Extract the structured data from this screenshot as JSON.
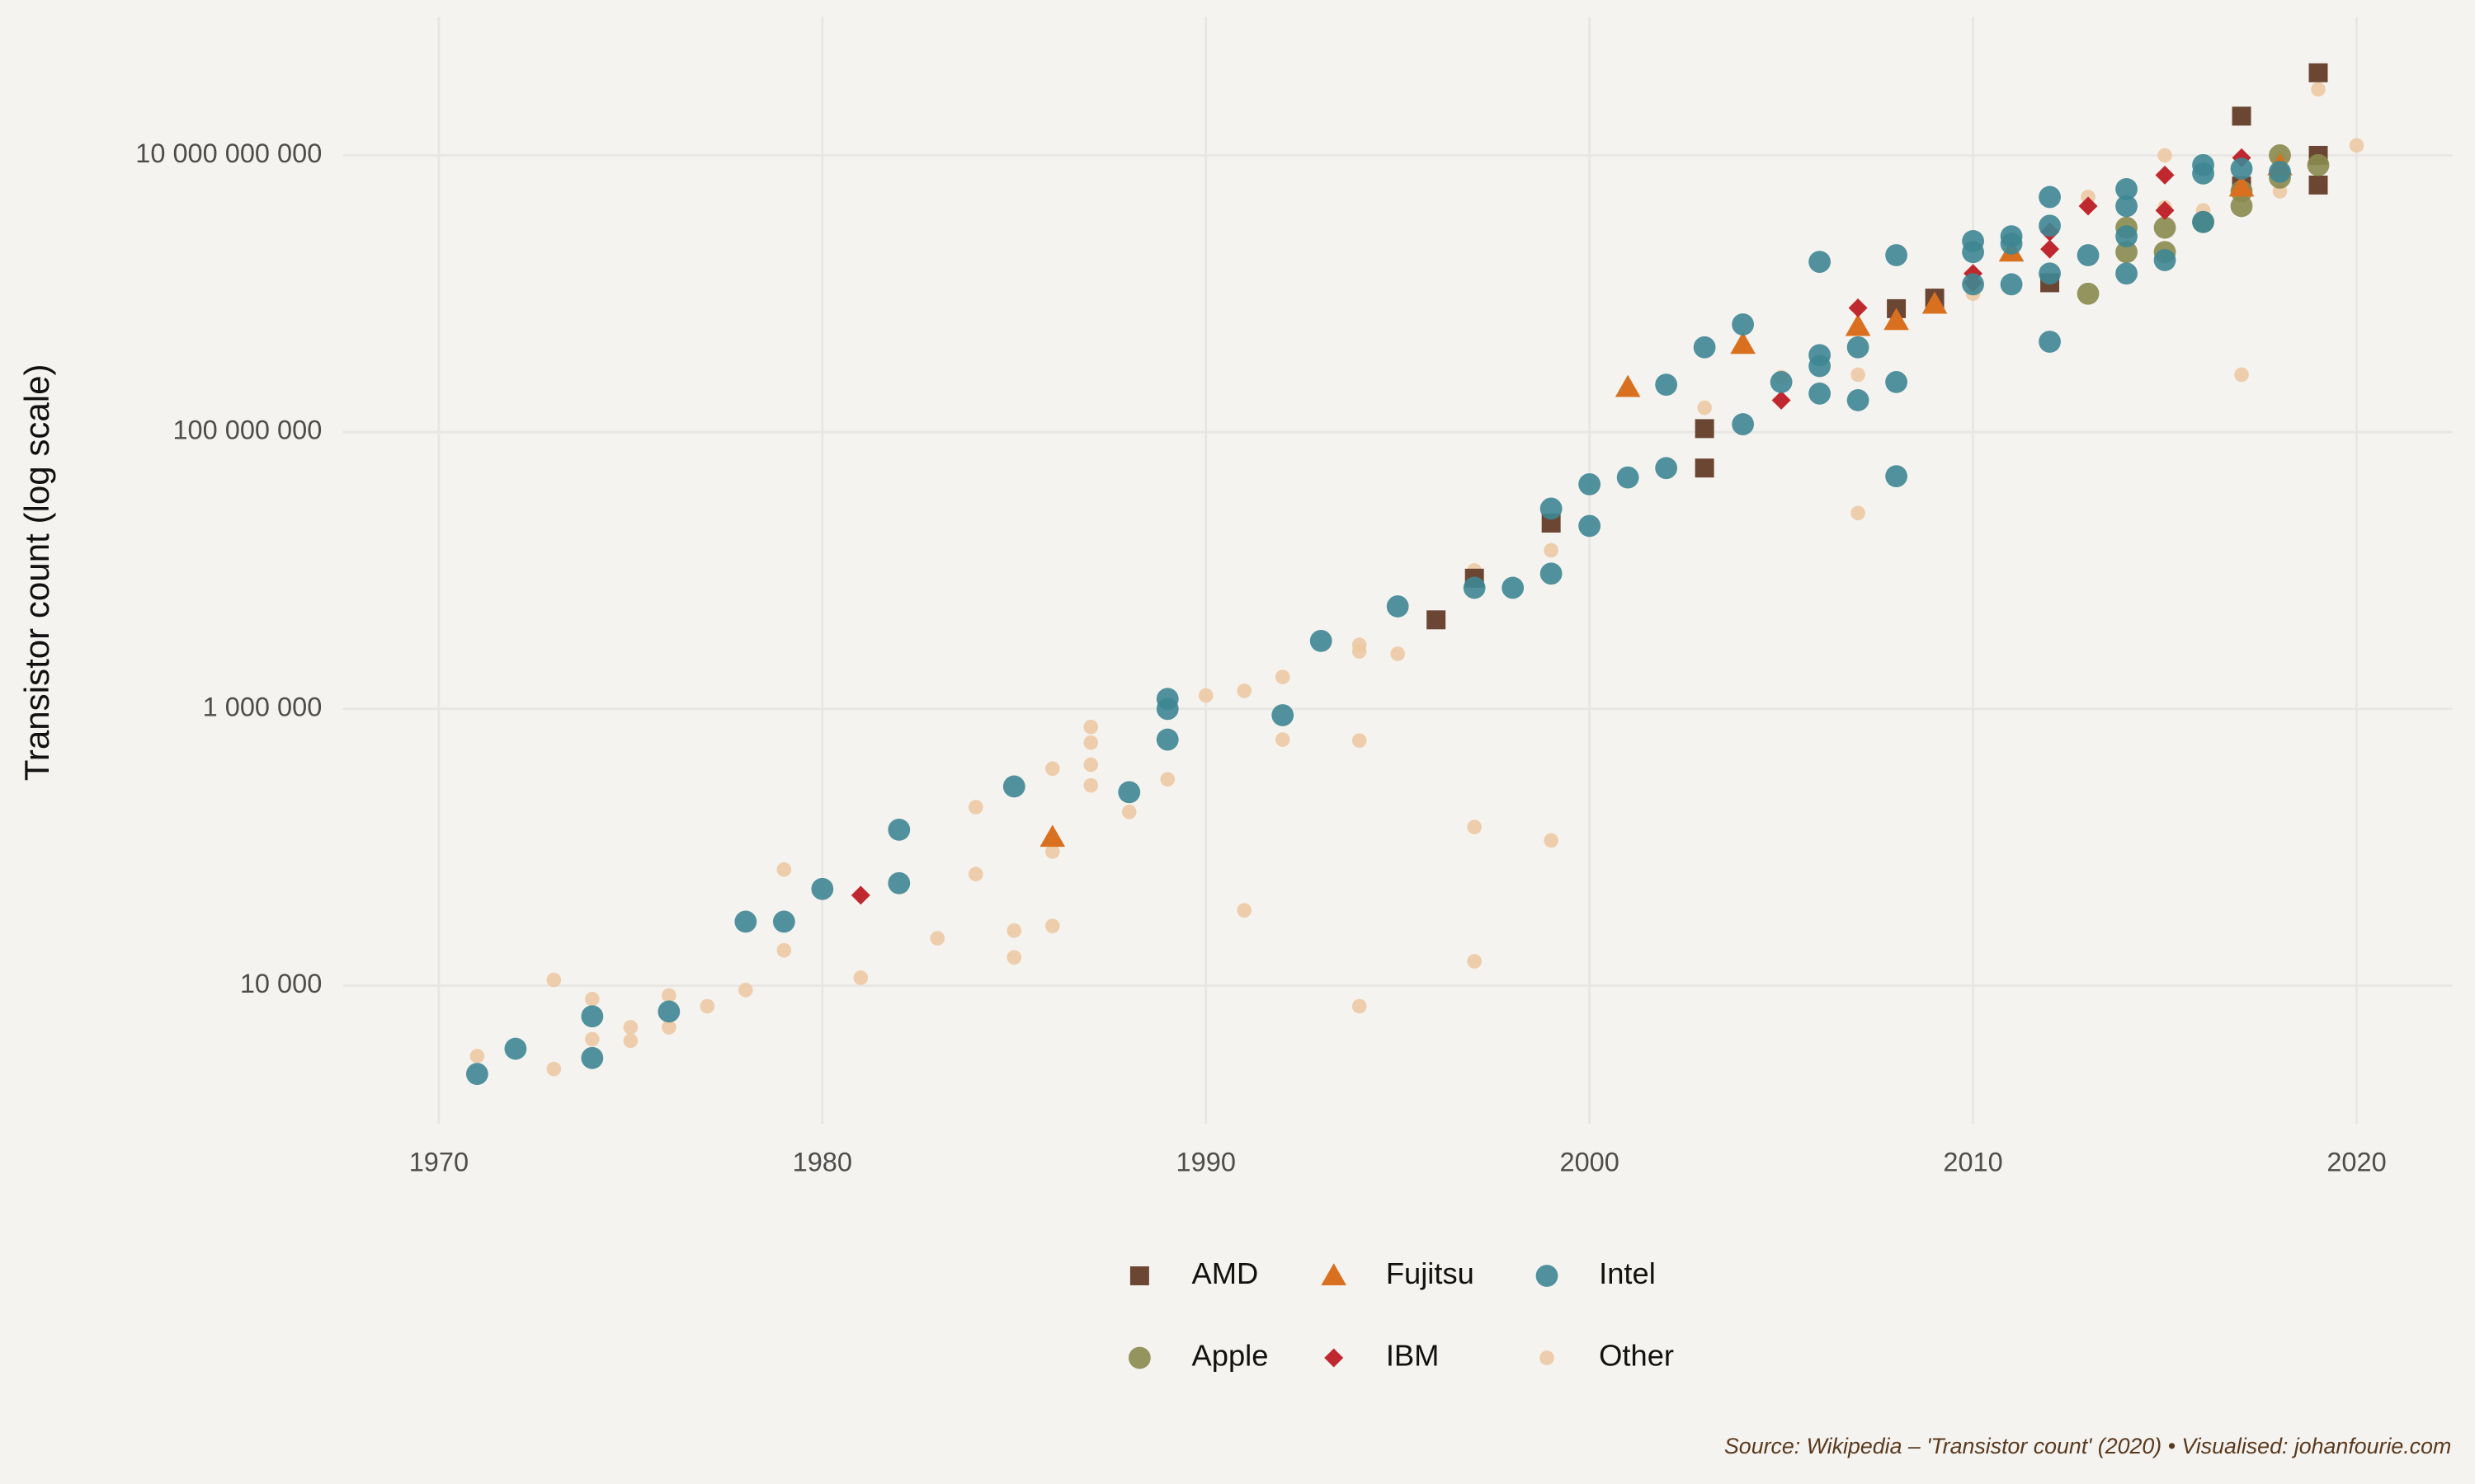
{
  "chart_data": {
    "type": "scatter",
    "y_label": "Transistor count (log scale)",
    "caption": "Source: Wikipedia – 'Transistor count' (2020) • Visualised: johanfourie.com",
    "log_y": true,
    "grid": true,
    "legend_position": "bottom",
    "xlim": [
      1967.5,
      2022.5
    ],
    "xticks": [
      1970,
      1980,
      1990,
      2000,
      2010,
      2020
    ],
    "ylim": [
      1000,
      100000000000
    ],
    "yticks": [
      {
        "value": 10000,
        "label": "10 000"
      },
      {
        "value": 1000000,
        "label": "1 000 000"
      },
      {
        "value": 100000000,
        "label": "100 000 000"
      },
      {
        "value": 10000000000,
        "label": "10 000 000 000"
      }
    ],
    "series": [
      {
        "name": "AMD",
        "color": "#6b4733",
        "marker": "square",
        "x": [
          1996,
          1997,
          1999,
          2003,
          2003,
          2008,
          2009,
          2012,
          2017,
          2017,
          2019,
          2019,
          2019
        ],
        "values": [
          4400000,
          8800000,
          22000000,
          55000000,
          106000000,
          780000000,
          930000000,
          1200000000,
          19200000000,
          6000000000,
          39500000000,
          10000000000,
          6100000000
        ]
      },
      {
        "name": "Apple",
        "color": "#8a8a4e",
        "marker": "circle",
        "x": [
          2013,
          2014,
          2014,
          2015,
          2015,
          2016,
          2017,
          2017,
          2018,
          2018,
          2019
        ],
        "values": [
          1000000000,
          2000000000,
          3000000000,
          2000000000,
          3000000000,
          3300000000,
          4300000000,
          5500000000,
          6900000000,
          10000000000,
          8500000000
        ]
      },
      {
        "name": "Fujitsu",
        "color": "#d9701f",
        "marker": "triangle",
        "x": [
          1986,
          2001,
          2004,
          2007,
          2008,
          2009,
          2011,
          2017,
          2018
        ],
        "values": [
          118000,
          210000000,
          430000000,
          580000000,
          640000000,
          840000000,
          2000000000,
          5900000000,
          8400000000
        ]
      },
      {
        "name": "IBM",
        "color": "#c0282f",
        "marker": "diamond",
        "x": [
          1981,
          2005,
          2007,
          2010,
          2010,
          2012,
          2012,
          2013,
          2015,
          2015,
          2017
        ],
        "values": [
          45000,
          170000000,
          790000000,
          1200000000,
          1400000000,
          2100000000,
          2800000000,
          4300000000,
          4000000000,
          7200000000,
          9600000000
        ]
      },
      {
        "name": "Intel",
        "color": "#3e8694",
        "marker": "circle",
        "x": [
          1971,
          1972,
          1974,
          1974,
          1976,
          1978,
          1979,
          1980,
          1982,
          1982,
          1985,
          1988,
          1989,
          1989,
          1989,
          1992,
          1993,
          1995,
          1997,
          1998,
          1999,
          1999,
          2000,
          2000,
          2001,
          2002,
          2002,
          2003,
          2004,
          2004,
          2005,
          2006,
          2006,
          2006,
          2006,
          2007,
          2007,
          2008,
          2008,
          2008,
          2010,
          2010,
          2010,
          2011,
          2011,
          2011,
          2012,
          2012,
          2012,
          2012,
          2013,
          2014,
          2014,
          2014,
          2014,
          2015,
          2016,
          2016,
          2016,
          2017,
          2018
        ],
        "values": [
          2300,
          3500,
          6000,
          3000,
          6500,
          29000,
          29000,
          50000,
          55000,
          134000,
          275000,
          250000,
          1180000,
          1000000,
          600000,
          900000,
          3100000,
          5500000,
          7500000,
          7500000,
          9500000,
          28000000,
          21000000,
          42000000,
          47000000,
          55000000,
          220000000,
          410000000,
          114000000,
          600000000,
          230000000,
          190000000,
          300000000,
          360000000,
          1700000000,
          170000000,
          410000000,
          48000000,
          230000000,
          1900000000,
          1170000000,
          2000000000,
          2400000000,
          1170000000,
          2300000000,
          2600000000,
          450000000,
          1400000000,
          3100000000,
          5000000000,
          1900000000,
          1400000000,
          2600000000,
          4300000000,
          5700000000,
          1750000000,
          3300000000,
          7400000000,
          8500000000,
          8000000000,
          7600000000
        ]
      },
      {
        "name": "Other",
        "color": "#ecc9a3",
        "marker": "dot",
        "x": [
          1971,
          1973,
          1973,
          1974,
          1974,
          1975,
          1975,
          1976,
          1976,
          1977,
          1978,
          1979,
          1979,
          1981,
          1983,
          1984,
          1984,
          1985,
          1985,
          1986,
          1986,
          1986,
          1987,
          1987,
          1987,
          1987,
          1988,
          1989,
          1990,
          1991,
          1991,
          1992,
          1992,
          1994,
          1994,
          1994,
          1994,
          1995,
          1997,
          1997,
          1997,
          1999,
          1999,
          2003,
          2005,
          2007,
          2007,
          2010,
          2013,
          2015,
          2015,
          2016,
          2017,
          2018,
          2018,
          2019,
          2020
        ],
        "values": [
          3100,
          11000,
          2500,
          8000,
          4100,
          5000,
          4000,
          5000,
          8500,
          7100,
          9300,
          18000,
          69000,
          11400,
          22000,
          64000,
          195000,
          25000,
          16000,
          27000,
          93000,
          370000,
          280000,
          395000,
          570000,
          740000,
          180000,
          310000,
          1250000,
          35000,
          1350000,
          600000,
          1700000,
          7100,
          590000,
          2600000,
          2900000,
          2500000,
          15000,
          140000,
          10000000,
          112000,
          14000000,
          150000000,
          250000000,
          26000000,
          260000000,
          1000000000,
          5000000000,
          10000000000,
          4200000000,
          4000000000,
          260000000,
          5500000000,
          9500000000,
          30000000000,
          11800000000
        ]
      }
    ]
  }
}
